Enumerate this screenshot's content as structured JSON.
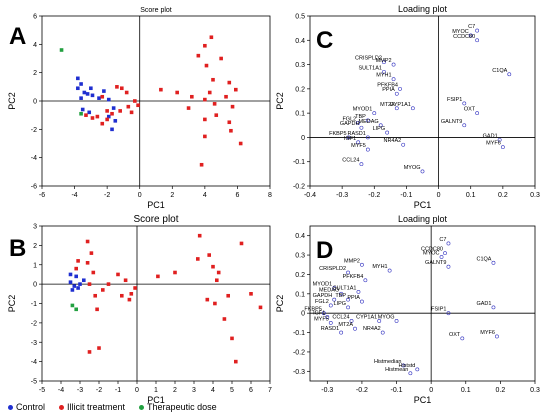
{
  "legend": {
    "items": [
      {
        "label": "Control",
        "color": "#1f2fd0"
      },
      {
        "label": "Illicit treatment",
        "color": "#e02020"
      },
      {
        "label": "Therapeutic dose",
        "color": "#22a040"
      }
    ]
  },
  "chart_data": [
    {
      "panel": "A",
      "type": "scatter",
      "title": "Score plot",
      "xlabel": "PC1",
      "ylabel": "PC2",
      "xlim": [
        -6,
        8
      ],
      "ylim": [
        -6,
        6
      ],
      "xticks": [
        -6,
        -4,
        -2,
        0,
        2,
        4,
        6,
        8
      ],
      "yticks": [
        -6,
        -4,
        -2,
        0,
        2,
        4,
        6
      ],
      "series": [
        {
          "name": "Control",
          "color": "#1f2fd0",
          "points": [
            [
              -3.8,
              1.6
            ],
            [
              -3.6,
              1.2
            ],
            [
              -3.8,
              0.9
            ],
            [
              -3.4,
              0.6
            ],
            [
              -3.2,
              0.5
            ],
            [
              -3.0,
              0.9
            ],
            [
              -2.9,
              0.4
            ],
            [
              -2.5,
              0.2
            ],
            [
              -2.2,
              0.7
            ],
            [
              -1.9,
              0.1
            ],
            [
              -1.6,
              -0.5
            ],
            [
              -1.9,
              -1.1
            ],
            [
              -1.5,
              -1.4
            ],
            [
              -1.7,
              -2.0
            ],
            [
              -3.5,
              -0.6
            ],
            [
              -3.1,
              -0.8
            ],
            [
              -3.6,
              0.2
            ]
          ]
        },
        {
          "name": "Illicit treatment",
          "color": "#e02020",
          "points": [
            [
              -3.3,
              -1.0
            ],
            [
              -2.9,
              -1.2
            ],
            [
              -2.6,
              -1.1
            ],
            [
              -2.3,
              0.3
            ],
            [
              -2.0,
              -0.7
            ],
            [
              -1.7,
              -0.9
            ],
            [
              -1.2,
              -0.7
            ],
            [
              -0.7,
              -0.4
            ],
            [
              -0.5,
              -0.8
            ],
            [
              -0.3,
              0.0
            ],
            [
              -0.1,
              -0.3
            ],
            [
              -1.4,
              1.0
            ],
            [
              -1.1,
              0.9
            ],
            [
              -0.8,
              0.6
            ],
            [
              -2.3,
              -1.6
            ],
            [
              -2.0,
              -1.3
            ],
            [
              4.0,
              3.9
            ],
            [
              4.4,
              4.5
            ],
            [
              3.6,
              3.2
            ],
            [
              4.1,
              2.5
            ],
            [
              4.5,
              1.5
            ],
            [
              4.3,
              0.6
            ],
            [
              4.0,
              0.1
            ],
            [
              4.6,
              -0.2
            ],
            [
              5.5,
              1.3
            ],
            [
              5.0,
              3.0
            ],
            [
              5.3,
              0.3
            ],
            [
              5.7,
              -0.4
            ],
            [
              5.5,
              -1.5
            ],
            [
              4.7,
              -1.0
            ],
            [
              4.0,
              -1.3
            ],
            [
              4.0,
              -2.5
            ],
            [
              3.8,
              -4.5
            ],
            [
              5.6,
              -2.1
            ],
            [
              6.2,
              -3.0
            ],
            [
              5.9,
              0.8
            ],
            [
              1.3,
              0.8
            ],
            [
              2.3,
              0.6
            ],
            [
              3.2,
              0.3
            ],
            [
              3.0,
              -0.5
            ]
          ]
        },
        {
          "name": "Therapeutic dose",
          "color": "#22a040",
          "points": [
            [
              -4.8,
              3.6
            ],
            [
              -3.6,
              -0.9
            ]
          ]
        }
      ]
    },
    {
      "panel": "B",
      "type": "scatter",
      "title": "Score plot",
      "xlabel": "PC1",
      "ylabel": "PC2",
      "xlim": [
        -5,
        7
      ],
      "ylim": [
        -5,
        3
      ],
      "xticks": [
        -5,
        -4,
        -3,
        -2,
        -1,
        0,
        1,
        2,
        3,
        4,
        5,
        6,
        7
      ],
      "yticks": [
        -5,
        -4,
        -3,
        -2,
        -1,
        0,
        1,
        2,
        3
      ],
      "series": [
        {
          "name": "Control",
          "color": "#1f2fd0",
          "points": [
            [
              -3.5,
              0.5
            ],
            [
              -3.2,
              0.4
            ],
            [
              -3.5,
              0.1
            ],
            [
              -3.3,
              -0.1
            ],
            [
              -3.0,
              0.0
            ],
            [
              -3.1,
              -0.2
            ],
            [
              -3.4,
              -0.3
            ],
            [
              -2.8,
              0.2
            ]
          ]
        },
        {
          "name": "Illicit treatment",
          "color": "#e02020",
          "points": [
            [
              -2.6,
              2.2
            ],
            [
              -2.4,
              1.6
            ],
            [
              -2.6,
              1.1
            ],
            [
              -2.3,
              0.6
            ],
            [
              -2.5,
              0.0
            ],
            [
              -2.2,
              -0.6
            ],
            [
              -1.8,
              -0.3
            ],
            [
              -1.5,
              0.0
            ],
            [
              -2.1,
              -1.3
            ],
            [
              -2.5,
              -3.5
            ],
            [
              -2.0,
              -3.3
            ],
            [
              -1.0,
              0.5
            ],
            [
              -0.6,
              0.2
            ],
            [
              -0.4,
              -0.8
            ],
            [
              -0.8,
              -0.6
            ],
            [
              -0.3,
              -0.5
            ],
            [
              -0.1,
              -0.2
            ],
            [
              -3.1,
              1.2
            ],
            [
              -3.2,
              0.8
            ],
            [
              3.3,
              2.5
            ],
            [
              3.8,
              1.5
            ],
            [
              4.0,
              0.9
            ],
            [
              4.3,
              0.6
            ],
            [
              4.2,
              0.2
            ],
            [
              4.8,
              -0.6
            ],
            [
              5.5,
              2.1
            ],
            [
              6.0,
              -0.5
            ],
            [
              6.5,
              -1.2
            ],
            [
              4.6,
              -1.8
            ],
            [
              5.0,
              -2.8
            ],
            [
              5.2,
              -4.0
            ],
            [
              4.1,
              -1.0
            ],
            [
              1.1,
              0.4
            ],
            [
              2.0,
              0.6
            ],
            [
              3.2,
              1.3
            ],
            [
              3.7,
              -0.8
            ]
          ]
        },
        {
          "name": "Therapeutic dose",
          "color": "#22a040",
          "points": [
            [
              -3.2,
              -1.3
            ],
            [
              -3.4,
              -1.1
            ]
          ]
        }
      ]
    },
    {
      "panel": "C",
      "type": "scatter",
      "title": "Loading plot",
      "xlabel": "PC1",
      "ylabel": "PC2",
      "xlim": [
        -0.4,
        0.3
      ],
      "ylim": [
        -0.2,
        0.5
      ],
      "xticks": [
        -0.4,
        -0.3,
        -0.2,
        -0.1,
        0,
        0.1,
        0.2,
        0.3
      ],
      "yticks": [
        -0.2,
        -0.1,
        0,
        0.1,
        0.2,
        0.3,
        0.4,
        0.5
      ],
      "points": [
        {
          "label": "MYOC",
          "x": 0.1,
          "y": 0.42
        },
        {
          "label": "C7",
          "x": 0.12,
          "y": 0.44
        },
        {
          "label": "CCDC80",
          "x": 0.12,
          "y": 0.4
        },
        {
          "label": "C1QA",
          "x": 0.22,
          "y": 0.26
        },
        {
          "label": "CRISPLD2",
          "x": -0.17,
          "y": 0.31
        },
        {
          "label": "MMP2",
          "x": -0.14,
          "y": 0.3
        },
        {
          "label": "SULT1A1",
          "x": -0.17,
          "y": 0.27
        },
        {
          "label": "MYH1",
          "x": -0.14,
          "y": 0.24
        },
        {
          "label": "PFKFB4",
          "x": -0.12,
          "y": 0.2
        },
        {
          "label": "PPIA",
          "x": -0.13,
          "y": 0.18
        },
        {
          "label": "MT2A",
          "x": -0.13,
          "y": 0.12
        },
        {
          "label": "CYP1A1",
          "x": -0.08,
          "y": 0.12
        },
        {
          "label": "MYOD1",
          "x": -0.2,
          "y": 0.1
        },
        {
          "label": "FGL2",
          "x": -0.25,
          "y": 0.06
        },
        {
          "label": "TBP",
          "x": -0.22,
          "y": 0.07
        },
        {
          "label": "MEDAG",
          "x": -0.18,
          "y": 0.05
        },
        {
          "label": "GAPDH",
          "x": -0.24,
          "y": 0.04
        },
        {
          "label": "FKBP5",
          "x": -0.28,
          "y": 0.0
        },
        {
          "label": "RASD1",
          "x": -0.22,
          "y": 0.0
        },
        {
          "label": "LIPG",
          "x": -0.16,
          "y": 0.02
        },
        {
          "label": "IGF1",
          "x": -0.25,
          "y": -0.02
        },
        {
          "label": "MYF5",
          "x": -0.22,
          "y": -0.05
        },
        {
          "label": "NR4A2",
          "x": -0.11,
          "y": -0.03
        },
        {
          "label": "CCL24",
          "x": -0.24,
          "y": -0.11
        },
        {
          "label": "MYOG",
          "x": -0.05,
          "y": -0.14
        },
        {
          "label": "FSIP1",
          "x": 0.08,
          "y": 0.14
        },
        {
          "label": "OXT",
          "x": 0.12,
          "y": 0.1
        },
        {
          "label": "GALNT9",
          "x": 0.08,
          "y": 0.05
        },
        {
          "label": "GAD1",
          "x": 0.19,
          "y": -0.01
        },
        {
          "label": "MYF6",
          "x": 0.2,
          "y": -0.04
        }
      ]
    },
    {
      "panel": "D",
      "type": "scatter",
      "title": "Loading plot",
      "xlabel": "PC1",
      "ylabel": "PC2",
      "xlim": [
        -0.35,
        0.3
      ],
      "ylim": [
        -0.35,
        0.45
      ],
      "xticks": [
        -0.3,
        -0.2,
        -0.1,
        0,
        0.1,
        0.2,
        0.3
      ],
      "yticks": [
        -0.3,
        -0.2,
        -0.1,
        0,
        0.1,
        0.2,
        0.3,
        0.4
      ],
      "points": [
        {
          "label": "C7",
          "x": 0.05,
          "y": 0.36
        },
        {
          "label": "CCDC80",
          "x": 0.04,
          "y": 0.31
        },
        {
          "label": "MYOC",
          "x": 0.03,
          "y": 0.29
        },
        {
          "label": "GALNT9",
          "x": 0.05,
          "y": 0.24
        },
        {
          "label": "C1QA",
          "x": 0.18,
          "y": 0.26
        },
        {
          "label": "MMP2",
          "x": -0.2,
          "y": 0.25
        },
        {
          "label": "CRISPLD2",
          "x": -0.24,
          "y": 0.21
        },
        {
          "label": "MYH1",
          "x": -0.12,
          "y": 0.22
        },
        {
          "label": "PFKFB4",
          "x": -0.19,
          "y": 0.17
        },
        {
          "label": "MYOD1",
          "x": -0.28,
          "y": 0.13
        },
        {
          "label": "MEDAG",
          "x": -0.26,
          "y": 0.1
        },
        {
          "label": "SULT1A1",
          "x": -0.21,
          "y": 0.11
        },
        {
          "label": "GAPDH",
          "x": -0.28,
          "y": 0.07
        },
        {
          "label": "TBP",
          "x": -0.24,
          "y": 0.07
        },
        {
          "label": "PPIA",
          "x": -0.2,
          "y": 0.06
        },
        {
          "label": "FGL2",
          "x": -0.29,
          "y": 0.04
        },
        {
          "label": "LIPG",
          "x": -0.24,
          "y": 0.03
        },
        {
          "label": "FKBP5",
          "x": -0.31,
          "y": 0.0
        },
        {
          "label": "IGF1",
          "x": -0.3,
          "y": -0.02
        },
        {
          "label": "MYF5",
          "x": -0.29,
          "y": -0.05
        },
        {
          "label": "CCL24",
          "x": -0.23,
          "y": -0.04
        },
        {
          "label": "MT2A",
          "x": -0.22,
          "y": -0.08
        },
        {
          "label": "RASD1",
          "x": -0.26,
          "y": -0.1
        },
        {
          "label": "CYP1A1",
          "x": -0.15,
          "y": -0.04
        },
        {
          "label": "NR4A2",
          "x": -0.14,
          "y": -0.1
        },
        {
          "label": "MYOG",
          "x": -0.1,
          "y": -0.04
        },
        {
          "label": "FSIP1",
          "x": 0.05,
          "y": 0.0
        },
        {
          "label": "GAD1",
          "x": 0.18,
          "y": 0.03
        },
        {
          "label": "OXT",
          "x": 0.09,
          "y": -0.13
        },
        {
          "label": "MYF6",
          "x": 0.19,
          "y": -0.12
        },
        {
          "label": "Histmedian",
          "x": -0.08,
          "y": -0.27
        },
        {
          "label": "Histmean",
          "x": -0.06,
          "y": -0.31
        },
        {
          "label": "Histstd",
          "x": -0.04,
          "y": -0.29
        }
      ]
    }
  ]
}
